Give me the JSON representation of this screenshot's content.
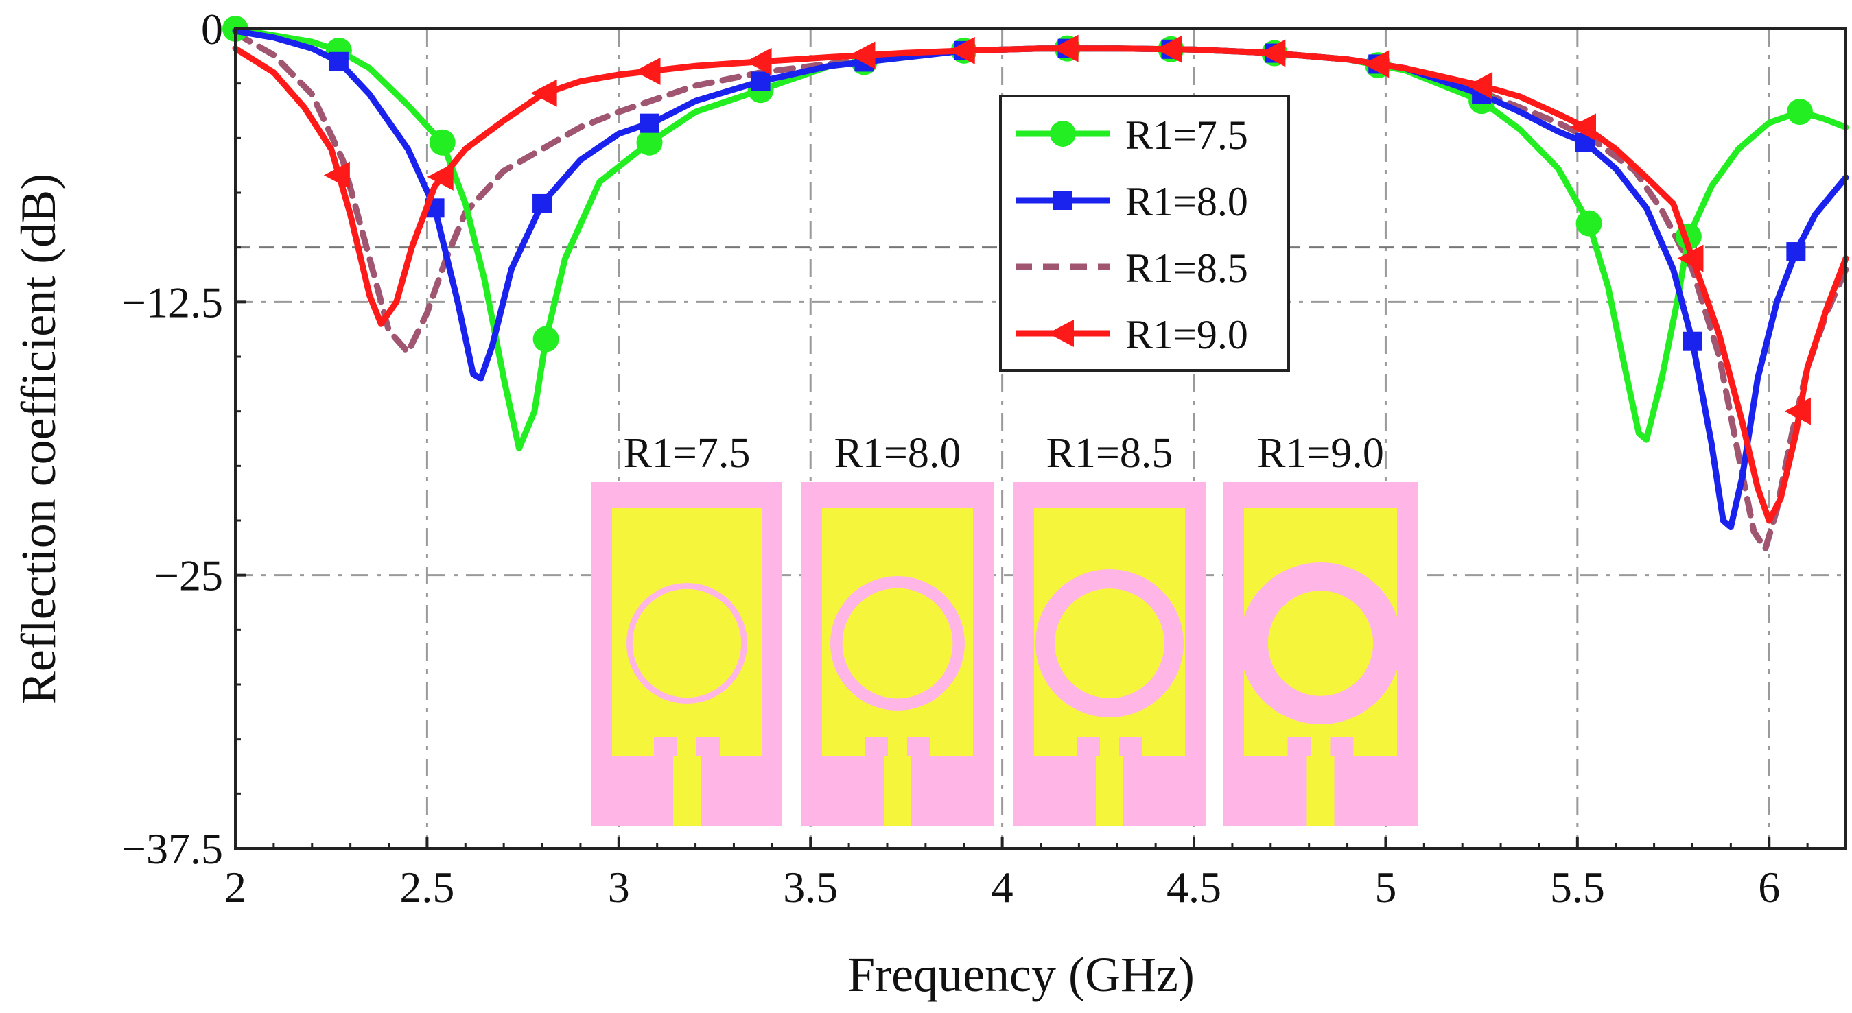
{
  "chart_data": {
    "type": "line",
    "title": "",
    "xlabel": "Frequency (GHz)",
    "ylabel": "Reflection coefficient (dB)",
    "xlim": [
      2,
      6.2
    ],
    "ylim": [
      -37.5,
      0
    ],
    "grid": true,
    "legend_position": "top-right",
    "x_ticks": [
      2,
      2.5,
      3,
      3.5,
      4,
      4.5,
      5,
      5.5,
      6
    ],
    "x_tick_labels": [
      "2",
      "2.5",
      "3",
      "3.5",
      "4",
      "4.5",
      "5",
      "5.5",
      "6"
    ],
    "y_ticks": [
      0,
      -12.5,
      -25,
      -37.5
    ],
    "y_tick_labels": [
      "0",
      "−12.5",
      "−25",
      "−37.5"
    ],
    "reference_line_db": -10,
    "series": [
      {
        "name": "R1=7.5",
        "color": "#22ee22",
        "style": "solid",
        "marker": "circle",
        "points": [
          [
            2,
            0
          ],
          [
            2.1,
            -0.3
          ],
          [
            2.2,
            -0.6
          ],
          [
            2.27,
            -1
          ],
          [
            2.35,
            -1.8
          ],
          [
            2.45,
            -3.5
          ],
          [
            2.54,
            -5.2
          ],
          [
            2.6,
            -8
          ],
          [
            2.65,
            -11.5
          ],
          [
            2.7,
            -16
          ],
          [
            2.74,
            -19.2
          ],
          [
            2.78,
            -17.5
          ],
          [
            2.81,
            -14.2
          ],
          [
            2.86,
            -10.5
          ],
          [
            2.95,
            -7
          ],
          [
            3.08,
            -5.2
          ],
          [
            3.2,
            -3.8
          ],
          [
            3.37,
            -2.8
          ],
          [
            3.55,
            -1.7
          ],
          [
            3.75,
            -1.3
          ],
          [
            3.9,
            -1
          ],
          [
            4.1,
            -0.9
          ],
          [
            4.3,
            -0.9
          ],
          [
            4.5,
            -0.95
          ],
          [
            4.7,
            -1.1
          ],
          [
            4.9,
            -1.4
          ],
          [
            5.05,
            -1.9
          ],
          [
            5.15,
            -2.6
          ],
          [
            5.25,
            -3.3
          ],
          [
            5.35,
            -4.6
          ],
          [
            5.45,
            -6.4
          ],
          [
            5.53,
            -8.9
          ],
          [
            5.58,
            -11.8
          ],
          [
            5.62,
            -15.2
          ],
          [
            5.66,
            -18.5
          ],
          [
            5.68,
            -18.8
          ],
          [
            5.72,
            -16
          ],
          [
            5.76,
            -12.5
          ],
          [
            5.79,
            -9.5
          ],
          [
            5.85,
            -7.2
          ],
          [
            5.92,
            -5.5
          ],
          [
            6,
            -4.3
          ],
          [
            6.08,
            -3.8
          ],
          [
            6.14,
            -4.1
          ],
          [
            6.2,
            -4.5
          ]
        ],
        "markers_x": [
          2,
          2.27,
          2.54,
          2.81,
          3.08,
          3.37,
          3.64,
          3.9,
          4.17,
          4.44,
          4.71,
          4.98,
          5.25,
          5.53,
          5.79,
          6.08
        ]
      },
      {
        "name": "R1=8.0",
        "color": "#1a22ee",
        "style": "solid",
        "marker": "square",
        "points": [
          [
            2,
            -0.1
          ],
          [
            2.1,
            -0.4
          ],
          [
            2.2,
            -0.9
          ],
          [
            2.27,
            -1.5
          ],
          [
            2.35,
            -3
          ],
          [
            2.45,
            -5.5
          ],
          [
            2.52,
            -8.2
          ],
          [
            2.58,
            -12.5
          ],
          [
            2.62,
            -15.8
          ],
          [
            2.64,
            -16
          ],
          [
            2.67,
            -14.5
          ],
          [
            2.72,
            -11
          ],
          [
            2.8,
            -8
          ],
          [
            2.9,
            -6
          ],
          [
            3,
            -4.8
          ],
          [
            3.1,
            -4.2
          ],
          [
            3.2,
            -3.3
          ],
          [
            3.37,
            -2.4
          ],
          [
            3.55,
            -1.7
          ],
          [
            3.75,
            -1.3
          ],
          [
            3.9,
            -1
          ],
          [
            4.1,
            -0.9
          ],
          [
            4.3,
            -0.9
          ],
          [
            4.5,
            -0.95
          ],
          [
            4.7,
            -1.1
          ],
          [
            4.9,
            -1.4
          ],
          [
            5.05,
            -1.8
          ],
          [
            5.15,
            -2.4
          ],
          [
            5.25,
            -3
          ],
          [
            5.35,
            -3.8
          ],
          [
            5.45,
            -4.7
          ],
          [
            5.52,
            -5.2
          ],
          [
            5.6,
            -6.4
          ],
          [
            5.68,
            -8.2
          ],
          [
            5.75,
            -11
          ],
          [
            5.8,
            -14.3
          ],
          [
            5.85,
            -19
          ],
          [
            5.88,
            -22.5
          ],
          [
            5.9,
            -22.8
          ],
          [
            5.93,
            -20.5
          ],
          [
            5.97,
            -16
          ],
          [
            6.02,
            -12.5
          ],
          [
            6.07,
            -10.2
          ],
          [
            6.12,
            -8.5
          ],
          [
            6.2,
            -6.8
          ]
        ],
        "markers_x": [
          2.27,
          2.52,
          2.8,
          3.08,
          3.37,
          3.64,
          3.9,
          4.17,
          4.44,
          4.71,
          4.98,
          5.25,
          5.52,
          5.8,
          6.07
        ]
      },
      {
        "name": "R1=8.5",
        "color": "#a05570",
        "style": "dashed",
        "marker": "none",
        "points": [
          [
            2,
            -0.2
          ],
          [
            2.1,
            -1.2
          ],
          [
            2.2,
            -3
          ],
          [
            2.28,
            -6
          ],
          [
            2.35,
            -10.5
          ],
          [
            2.4,
            -13.8
          ],
          [
            2.45,
            -14.8
          ],
          [
            2.5,
            -13
          ],
          [
            2.55,
            -10.5
          ],
          [
            2.6,
            -8.4
          ],
          [
            2.7,
            -6.5
          ],
          [
            2.8,
            -5.5
          ],
          [
            2.9,
            -4.5
          ],
          [
            3,
            -3.8
          ],
          [
            3.1,
            -3.2
          ],
          [
            3.2,
            -2.6
          ],
          [
            3.37,
            -2
          ],
          [
            3.55,
            -1.6
          ],
          [
            3.75,
            -1.3
          ],
          [
            3.9,
            -1
          ],
          [
            4.1,
            -0.9
          ],
          [
            4.3,
            -0.9
          ],
          [
            4.5,
            -0.95
          ],
          [
            4.7,
            -1.1
          ],
          [
            4.9,
            -1.4
          ],
          [
            5.05,
            -1.8
          ],
          [
            5.15,
            -2.3
          ],
          [
            5.25,
            -2.9
          ],
          [
            5.35,
            -3.6
          ],
          [
            5.45,
            -4.3
          ],
          [
            5.55,
            -5.2
          ],
          [
            5.65,
            -6.5
          ],
          [
            5.72,
            -8.3
          ],
          [
            5.8,
            -11
          ],
          [
            5.87,
            -15
          ],
          [
            5.92,
            -19.5
          ],
          [
            5.96,
            -23
          ],
          [
            5.99,
            -23.8
          ],
          [
            6.02,
            -22
          ],
          [
            6.06,
            -18.5
          ],
          [
            6.1,
            -15.5
          ],
          [
            6.15,
            -13
          ],
          [
            6.2,
            -11
          ]
        ],
        "markers_x": []
      },
      {
        "name": "R1=9.0",
        "color": "#ff1a1a",
        "style": "solid",
        "marker": "left-triangle",
        "points": [
          [
            2,
            -0.9
          ],
          [
            2.1,
            -2
          ],
          [
            2.18,
            -3.6
          ],
          [
            2.25,
            -5.5
          ],
          [
            2.3,
            -8.5
          ],
          [
            2.35,
            -12.2
          ],
          [
            2.38,
            -13.5
          ],
          [
            2.42,
            -12.5
          ],
          [
            2.46,
            -10
          ],
          [
            2.52,
            -7.2
          ],
          [
            2.6,
            -5.5
          ],
          [
            2.7,
            -4.2
          ],
          [
            2.8,
            -3
          ],
          [
            2.9,
            -2.4
          ],
          [
            3,
            -2.1
          ],
          [
            3.1,
            -1.9
          ],
          [
            3.2,
            -1.7
          ],
          [
            3.37,
            -1.5
          ],
          [
            3.55,
            -1.3
          ],
          [
            3.75,
            -1.1
          ],
          [
            3.9,
            -1
          ],
          [
            4.1,
            -0.9
          ],
          [
            4.3,
            -0.9
          ],
          [
            4.5,
            -0.95
          ],
          [
            4.7,
            -1.1
          ],
          [
            4.9,
            -1.4
          ],
          [
            5.05,
            -1.8
          ],
          [
            5.15,
            -2.2
          ],
          [
            5.25,
            -2.6
          ],
          [
            5.35,
            -3.1
          ],
          [
            5.45,
            -3.9
          ],
          [
            5.52,
            -4.5
          ],
          [
            5.6,
            -5.5
          ],
          [
            5.68,
            -6.8
          ],
          [
            5.75,
            -8
          ],
          [
            5.8,
            -10.5
          ],
          [
            5.87,
            -14
          ],
          [
            5.93,
            -18
          ],
          [
            5.97,
            -21
          ],
          [
            6,
            -22.5
          ],
          [
            6.03,
            -21.5
          ],
          [
            6.07,
            -18.5
          ],
          [
            6.1,
            -15.5
          ],
          [
            6.15,
            -12.8
          ],
          [
            6.2,
            -10.5
          ]
        ],
        "markers_x": [
          2.27,
          2.54,
          2.81,
          3.08,
          3.37,
          3.64,
          3.9,
          4.17,
          4.44,
          4.71,
          4.98,
          5.25,
          5.52,
          5.8,
          6.08
        ]
      }
    ],
    "inset": {
      "labels": [
        "R1=7.5",
        "R1=8.0",
        "R1=8.5",
        "R1=9.0"
      ],
      "ring_widths": [
        0.1,
        0.18,
        0.26,
        0.35
      ],
      "substrate_color": "#ffb6e6",
      "patch_color": "#f5f53c"
    }
  }
}
